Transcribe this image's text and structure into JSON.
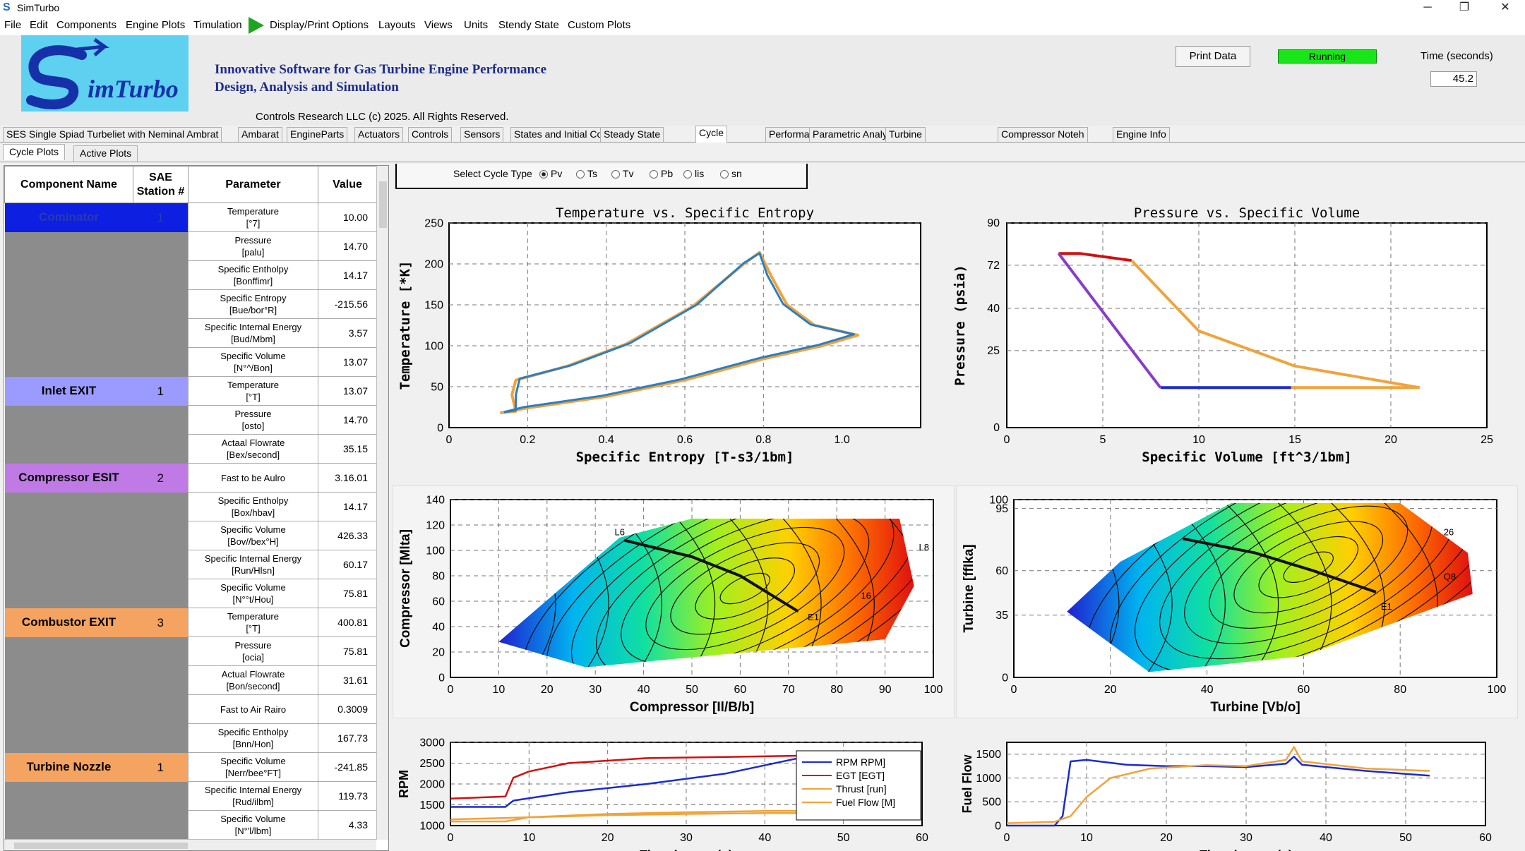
{
  "window": {
    "title": "SimTurbo",
    "controls": [
      "─",
      "❐",
      "✕"
    ]
  },
  "menu": [
    "File",
    "Edit",
    "Components",
    "Engine Plots",
    "Timulation",
    "Display/Print Options",
    "Layouts",
    "Views",
    "Units",
    "Stendy State",
    "Custom Plots"
  ],
  "header": {
    "logo": "SimTurbo",
    "tagline1": "Innovative Software for Gas Turbine Engine Performance",
    "tagline2": "Design, Analysis and Simulation",
    "copyright": "Controls Research LLC    (c) 2025.   All Rights Reserved.",
    "print_button": "Print Data",
    "status": "Running",
    "time_label": "Time (seconds)",
    "time_value": "45.2"
  },
  "tabs": [
    "SES Single Spiad Turbeliet with Neminal Ambrat",
    "Ambarat",
    "EngineParts",
    "Actuators",
    "Controls",
    "Sensors",
    "States and Initial Conditions",
    "Steady State",
    "Cycle",
    "Performance",
    "Parametric Analysis",
    "Turbine",
    "Compressor Noteh",
    "Engine Info"
  ],
  "active_tab": "Cycle",
  "subtabs": [
    "Cycle Plots",
    "Active Plots"
  ],
  "table": {
    "headers": [
      "Component Name",
      "SAE Station #",
      "Parameter",
      "Value"
    ],
    "groups": [
      {
        "name": "Cominator",
        "sae": "1",
        "color": "#0d1fe0",
        "rows": [
          [
            "Temperature",
            "[°7]",
            "10.00"
          ],
          [
            "Pressure",
            "[palu]",
            "14.70"
          ],
          [
            "Specific Entholpy",
            "[Bonffimr]",
            "14.17"
          ],
          [
            "Specific Entropy",
            "[Bue/bor°R]",
            "-215.56"
          ],
          [
            "Specific Internal Energy",
            "[Bud/Mbm]",
            "3.57"
          ],
          [
            "Specific Volume",
            "[N°^/Bon]",
            "13.07"
          ]
        ]
      },
      {
        "name": "Inlet EXIT",
        "sae": "1",
        "color": "#9a9aff",
        "rows": [
          [
            "Temperature",
            "[°T]",
            "13.07"
          ],
          [
            "Pressure",
            "[osto]",
            "14.70"
          ],
          [
            "Actaal Flowrate",
            "[Bex/second]",
            "35.15"
          ]
        ]
      },
      {
        "name": "Compressor ESIT",
        "sae": "2",
        "color": "#c07ae6",
        "rows": [
          [
            "Fast to be Aulro",
            "",
            "3.16.01"
          ],
          [
            "Specific Entholpy",
            "[Box/hbav]",
            "14.17"
          ],
          [
            "Specific Volume",
            "[Bov//bex°H]",
            "426.33"
          ],
          [
            "Specific Internal Energy",
            "[Run/Hlsn]",
            "60.17"
          ],
          [
            "Specific Volume",
            "[N°°t/Hou]",
            "75.81"
          ]
        ]
      },
      {
        "name": "Combustor EXIT",
        "sae": "3",
        "color": "#f5a360",
        "rows": [
          [
            "Temperature",
            "[°T]",
            "400.81"
          ],
          [
            "Pressure",
            "[ocia]",
            "75.81"
          ],
          [
            "Actual Flowrate",
            "[Bon/second]",
            "31.61"
          ],
          [
            "Fast to Air Rairo",
            "",
            "0.3009"
          ],
          [
            "Specific Entholpy",
            "[Bnn/Hon]",
            "167.73"
          ]
        ]
      },
      {
        "name": "Turbine Nozzle",
        "sae": "1",
        "color": "#f5a360",
        "rows": [
          [
            "Specific Volume",
            "[Nerr/bee°FT]",
            "-241.85"
          ],
          [
            "Specific Internal Energy",
            "[Rud/ilbm]",
            "119.73"
          ],
          [
            "Specific Volume",
            "[N°'l/lbm]",
            "4.33"
          ]
        ]
      }
    ]
  },
  "cycle_selector": {
    "label": "Select Cycle Type",
    "options": [
      "Pv",
      "Ts",
      "Tv",
      "Pb",
      "lis",
      "sn"
    ],
    "selected": "Pv"
  },
  "colors": {
    "line_orange": "#f0a33c",
    "line_blue": "#2c7fc0",
    "line_purple": "#8a3cc8",
    "line_red": "#d01010",
    "line_darkblue": "#1a2bd0",
    "map_line": "#111111"
  },
  "chart_data": [
    {
      "type": "line",
      "title": "Temperature vs. Specific Entropy",
      "xlabel": "Specific Entropy [T-s3/1bm]",
      "ylabel": "Temperature [*K]",
      "xlim": [
        0,
        1.2
      ],
      "ylim": [
        0,
        250
      ],
      "xticks": [
        "0",
        "0.2",
        "0.4",
        "0.6",
        "0.8",
        "1.0"
      ],
      "yticks": [
        "0",
        "50",
        "100",
        "150",
        "200",
        "250"
      ],
      "grid": true,
      "series": [
        {
          "values": [
            [
              0.13,
              18
            ],
            [
              0.17,
              20
            ],
            [
              0.16,
              40
            ],
            [
              0.17,
              58
            ],
            [
              0.3,
              75
            ],
            [
              0.45,
              102
            ],
            [
              0.62,
              148
            ],
            [
              0.75,
              200
            ],
            [
              0.79,
              214
            ],
            [
              0.82,
              185
            ],
            [
              0.86,
              150
            ],
            [
              0.93,
              125
            ],
            [
              1.04,
              113
            ],
            [
              0.95,
              100
            ],
            [
              0.8,
              84
            ],
            [
              0.6,
              58
            ],
            [
              0.4,
              38
            ],
            [
              0.2,
              24
            ],
            [
              0.13,
              18
            ]
          ]
        },
        {
          "values": [
            [
              0.14,
              19
            ],
            [
              0.17,
              21
            ],
            [
              0.17,
              40
            ],
            [
              0.18,
              60
            ],
            [
              0.31,
              76
            ],
            [
              0.46,
              103
            ],
            [
              0.63,
              150
            ],
            [
              0.75,
              201
            ],
            [
              0.79,
              213
            ],
            [
              0.81,
              186
            ],
            [
              0.85,
              151
            ],
            [
              0.92,
              126
            ],
            [
              1.03,
              114
            ],
            [
              0.94,
              101
            ],
            [
              0.79,
              85
            ],
            [
              0.59,
              59
            ],
            [
              0.39,
              39
            ],
            [
              0.19,
              25
            ],
            [
              0.14,
              19
            ]
          ]
        }
      ]
    },
    {
      "type": "line",
      "title": "Pressure vs. Specific Volume",
      "xlabel": "Specific Volume [ft^3/1bm]",
      "ylabel": "Pressure (psia)",
      "xlim": [
        0,
        25
      ],
      "ylim": [
        0,
        90
      ],
      "xticks": [
        "0",
        "5",
        "10",
        "15",
        "20",
        "25"
      ],
      "yticks": [
        "0",
        "25",
        "40",
        "72",
        "90"
      ],
      "grid": true,
      "series": [
        {
          "values": [
            [
              2.7,
              77
            ],
            [
              3.8,
              77
            ],
            [
              6.5,
              74
            ]
          ]
        },
        {
          "values": [
            [
              6.5,
              74
            ],
            [
              10,
              32
            ],
            [
              15,
              20
            ],
            [
              21.5,
              13
            ]
          ]
        },
        {
          "values": [
            [
              21.5,
              13
            ],
            [
              14.8,
              13
            ]
          ]
        },
        {
          "values": [
            [
              14.8,
              13
            ],
            [
              8,
              13
            ]
          ]
        },
        {
          "values": [
            [
              8,
              13
            ],
            [
              6.2,
              28
            ],
            [
              2.7,
              77
            ]
          ]
        }
      ]
    },
    {
      "type": "heatmap",
      "xlabel": "Compressor [Il/B/b]",
      "ylabel": "Compressor [Mlta]",
      "xlim": [
        0,
        100
      ],
      "ylim": [
        0,
        140
      ],
      "xticks": [
        "0",
        "10",
        "20",
        "30",
        "40",
        "50",
        "60",
        "70",
        "80",
        "90",
        "100"
      ],
      "yticks": [
        "0",
        "20",
        "40",
        "60",
        "80",
        "100",
        "120",
        "140"
      ],
      "labels": [
        "L6",
        "L8",
        "16",
        "E1"
      ],
      "operating_line": [
        [
          36,
          108
        ],
        [
          50,
          95
        ],
        [
          60,
          80
        ],
        [
          72,
          52
        ]
      ]
    },
    {
      "type": "heatmap",
      "xlabel": "Turbine [Vb/o]",
      "ylabel": "Turbine [ffIka]",
      "xlim": [
        0,
        100
      ],
      "ylim": [
        0,
        100
      ],
      "xticks": [
        "0",
        "20",
        "40",
        "60",
        "80",
        "100"
      ],
      "yticks": [
        "0",
        "35",
        "60",
        "95",
        "100"
      ],
      "labels": [
        "26",
        "Q8",
        "E1"
      ],
      "operating_line": [
        [
          35,
          78
        ],
        [
          50,
          70
        ],
        [
          62,
          60
        ],
        [
          75,
          48
        ]
      ]
    },
    {
      "type": "line",
      "xlabel": "Time (seconds)",
      "ylabel": "RPM",
      "xlim": [
        0,
        60
      ],
      "ylim": [
        1000,
        3000
      ],
      "xticks": [
        "0",
        "10",
        "20",
        "30",
        "40",
        "50",
        "60"
      ],
      "yticks": [
        "1000",
        "1500",
        "2000",
        "2500",
        "3000"
      ],
      "legend": [
        "RPM RPM]",
        "EGT [EGT]",
        "Thrust [run]",
        "Fuel Flow [M]"
      ],
      "legend_position": "bottom-right",
      "series": [
        {
          "name": "RPM RPM]",
          "values": [
            [
              0,
              1450
            ],
            [
              7,
              1450
            ],
            [
              8,
              1600
            ],
            [
              15,
              1800
            ],
            [
              25,
              2000
            ],
            [
              35,
              2250
            ],
            [
              45,
              2650
            ]
          ]
        },
        {
          "name": "EGT [EGT]",
          "values": [
            [
              0,
              1650
            ],
            [
              7,
              1700
            ],
            [
              8,
              2150
            ],
            [
              10,
              2300
            ],
            [
              15,
              2500
            ],
            [
              25,
              2620
            ],
            [
              35,
              2650
            ],
            [
              45,
              2680
            ]
          ]
        },
        {
          "name": "Thrust [run]",
          "values": [
            [
              0,
              1100
            ],
            [
              7,
              1100
            ],
            [
              10,
              1200
            ],
            [
              20,
              1280
            ],
            [
              30,
              1320
            ],
            [
              40,
              1350
            ],
            [
              45,
              1350
            ]
          ]
        },
        {
          "name": "Fuel Flow [M]",
          "values": [
            [
              0,
              1150
            ],
            [
              10,
              1200
            ],
            [
              20,
              1250
            ],
            [
              30,
              1280
            ],
            [
              40,
              1300
            ],
            [
              45,
              1300
            ]
          ]
        }
      ]
    },
    {
      "type": "line",
      "xlabel": "Time (seconds)",
      "ylabel": "Fuel Flow",
      "xlim": [
        0,
        60
      ],
      "ylim": [
        0,
        1750
      ],
      "xticks": [
        "0",
        "10",
        "20",
        "30",
        "40",
        "50",
        "60"
      ],
      "yticks": [
        "0",
        "500",
        "1000",
        "1500"
      ],
      "series": [
        {
          "values": [
            [
              0,
              0
            ],
            [
              6,
              0
            ],
            [
              7,
              200
            ],
            [
              8,
              1350
            ],
            [
              10,
              1380
            ],
            [
              15,
              1280
            ],
            [
              20,
              1250
            ],
            [
              25,
              1250
            ],
            [
              30,
              1230
            ],
            [
              35,
              1300
            ],
            [
              36,
              1450
            ],
            [
              37,
              1280
            ],
            [
              45,
              1150
            ],
            [
              53,
              1050
            ]
          ]
        },
        {
          "values": [
            [
              0,
              50
            ],
            [
              6,
              80
            ],
            [
              8,
              200
            ],
            [
              10,
              600
            ],
            [
              13,
              1000
            ],
            [
              18,
              1200
            ],
            [
              25,
              1270
            ],
            [
              30,
              1250
            ],
            [
              35,
              1380
            ],
            [
              36,
              1650
            ],
            [
              37,
              1350
            ],
            [
              45,
              1200
            ],
            [
              53,
              1150
            ]
          ]
        }
      ]
    }
  ]
}
